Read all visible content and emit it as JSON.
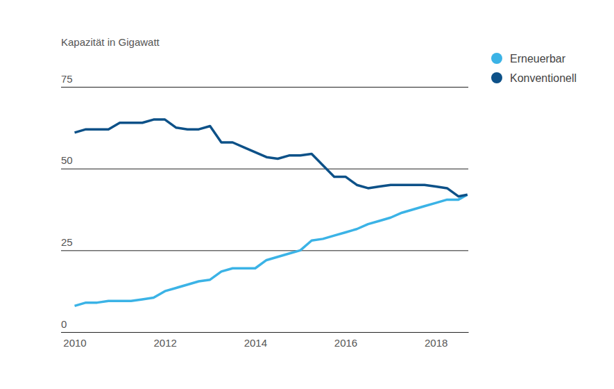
{
  "chart_data": {
    "type": "line",
    "y_label": "Kapazität in Gigawatt",
    "x": [
      2010,
      2010.25,
      2010.5,
      2010.75,
      2011,
      2011.25,
      2011.5,
      2011.75,
      2012,
      2012.25,
      2012.5,
      2012.75,
      2013,
      2013.25,
      2013.5,
      2013.75,
      2014,
      2014.25,
      2014.5,
      2014.75,
      2015,
      2015.25,
      2015.5,
      2015.75,
      2016,
      2016.25,
      2016.5,
      2016.75,
      2017,
      2017.25,
      2017.5,
      2017.75,
      2018,
      2018.25,
      2018.5,
      2018.7
    ],
    "series": [
      {
        "name": "Erneuerbar",
        "color": "#3bb3e6",
        "values": [
          8,
          9,
          9,
          9.5,
          9.5,
          9.5,
          10,
          10.5,
          12.5,
          13.5,
          14.5,
          15.5,
          16,
          18.5,
          19.5,
          19.5,
          19.5,
          22,
          23,
          24,
          25,
          28,
          28.5,
          29.5,
          30.5,
          31.5,
          33,
          34,
          35,
          36.5,
          37.5,
          38.5,
          39.5,
          40.5,
          40.5,
          42
        ]
      },
      {
        "name": "Konventionell",
        "color": "#0d5188",
        "values": [
          61,
          62,
          62,
          62,
          64,
          64,
          64,
          65,
          65,
          62.5,
          62,
          62,
          63,
          58,
          58,
          56.5,
          55,
          53.5,
          53,
          54,
          54,
          54.5,
          51,
          47.5,
          47.5,
          45,
          44,
          44.5,
          45,
          45,
          45,
          45,
          44.5,
          44,
          41.5,
          42
        ]
      }
    ],
    "xlim": [
      2009.7,
      2018.72
    ],
    "xticks": [
      2010,
      2012,
      2014,
      2016,
      2018
    ],
    "ylim": [
      0,
      75
    ],
    "yticks": [
      0,
      25,
      50,
      75
    ],
    "grid": true,
    "legend": "top-right"
  }
}
